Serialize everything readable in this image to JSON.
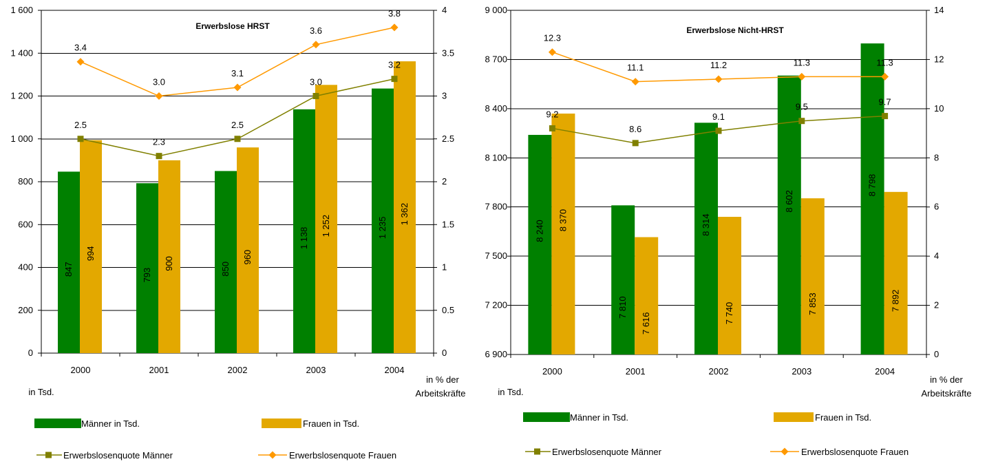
{
  "colors": {
    "men_bar": "#008000",
    "women_bar": "#E3A800",
    "men_line": "#808000",
    "women_line": "#FF9900",
    "grid": "#000000"
  },
  "legend": {
    "men_bar": "Männer in Tsd.",
    "women_bar": "Frauen in Tsd.",
    "men_line": "Erwerbslosenquote Männer",
    "women_line": "Erwerbslosenquote Frauen"
  },
  "chart_data": [
    {
      "type": "bar",
      "title": "Erwerbslose HRST",
      "categories": [
        "2000",
        "2001",
        "2002",
        "2003",
        "2004"
      ],
      "ylabel": "in Tsd.",
      "y2label": "in % der Arbeitskräfte",
      "ylim": [
        0,
        1600
      ],
      "yticks": [
        0,
        200,
        400,
        600,
        800,
        1000,
        1200,
        1400,
        1600
      ],
      "ytick_labels": [
        "0",
        "200",
        "400",
        "600",
        "800",
        "1 000",
        "1 200",
        "1 400",
        "1 600"
      ],
      "y2lim": [
        0,
        4
      ],
      "y2ticks": [
        0,
        0.5,
        1,
        1.5,
        2,
        2.5,
        3,
        3.5,
        4
      ],
      "y2tick_labels": [
        "0",
        "0.5",
        "1",
        "1.5",
        "2",
        "2.5",
        "3",
        "3.5",
        "4"
      ],
      "grid": true,
      "legend_position": "bottom",
      "series": [
        {
          "name": "Männer in Tsd.",
          "kind": "bar",
          "values": [
            847,
            793,
            850,
            1138,
            1235
          ],
          "labels": [
            "847",
            "793",
            "850",
            "1 138",
            "1 235"
          ]
        },
        {
          "name": "Frauen in Tsd.",
          "kind": "bar",
          "values": [
            994,
            900,
            960,
            1252,
            1362
          ],
          "labels": [
            "994",
            "900",
            "960",
            "1 252",
            "1 362"
          ]
        },
        {
          "name": "Erwerbslosenquote Männer",
          "kind": "line",
          "axis": "right",
          "values": [
            2.5,
            2.3,
            2.5,
            3.0,
            3.2
          ],
          "labels": [
            "2.5",
            "2.3",
            "2.5",
            "3.0",
            "3.2"
          ]
        },
        {
          "name": "Erwerbslosenquote Frauen",
          "kind": "line",
          "axis": "right",
          "values": [
            3.4,
            3.0,
            3.1,
            3.6,
            3.8
          ],
          "labels": [
            "3.4",
            "3.0",
            "3.1",
            "3.6",
            "3.8"
          ]
        }
      ]
    },
    {
      "type": "bar",
      "title": "Erwerbslose Nicht-HRST",
      "categories": [
        "2000",
        "2001",
        "2002",
        "2003",
        "2004"
      ],
      "ylabel": "in Tsd.",
      "y2label": "in % der Arbeitskräfte",
      "ylim": [
        6900,
        9000
      ],
      "yticks": [
        6900,
        7200,
        7500,
        7800,
        8100,
        8400,
        8700,
        9000
      ],
      "ytick_labels": [
        "6 900",
        "7 200",
        "7 500",
        "7 800",
        "8 100",
        "8 400",
        "8 700",
        "9 000"
      ],
      "y2lim": [
        0,
        14
      ],
      "y2ticks": [
        0,
        2,
        4,
        6,
        8,
        10,
        12,
        14
      ],
      "y2tick_labels": [
        "0",
        "2",
        "4",
        "6",
        "8",
        "10",
        "12",
        "14"
      ],
      "grid": true,
      "legend_position": "bottom",
      "series": [
        {
          "name": "Männer in Tsd.",
          "kind": "bar",
          "values": [
            8240,
            7810,
            8314,
            8602,
            8798
          ],
          "labels": [
            "8 240",
            "7 810",
            "8 314",
            "8 602",
            "8 798"
          ]
        },
        {
          "name": "Frauen in Tsd.",
          "kind": "bar",
          "values": [
            8370,
            7616,
            7740,
            7853,
            7892
          ],
          "labels": [
            "8 370",
            "7 616",
            "7 740",
            "7 853",
            "7 892"
          ]
        },
        {
          "name": "Erwerbslosenquote Männer",
          "kind": "line",
          "axis": "right",
          "values": [
            9.2,
            8.6,
            9.1,
            9.5,
            9.7
          ],
          "labels": [
            "9.2",
            "8.6",
            "9.1",
            "9.5",
            "9.7"
          ]
        },
        {
          "name": "Erwerbslosenquote Frauen",
          "kind": "line",
          "axis": "right",
          "values": [
            12.3,
            11.1,
            11.2,
            11.3,
            11.3
          ],
          "labels": [
            "12.3",
            "11.1",
            "11.2",
            "11.3",
            "11.3"
          ]
        }
      ]
    }
  ]
}
